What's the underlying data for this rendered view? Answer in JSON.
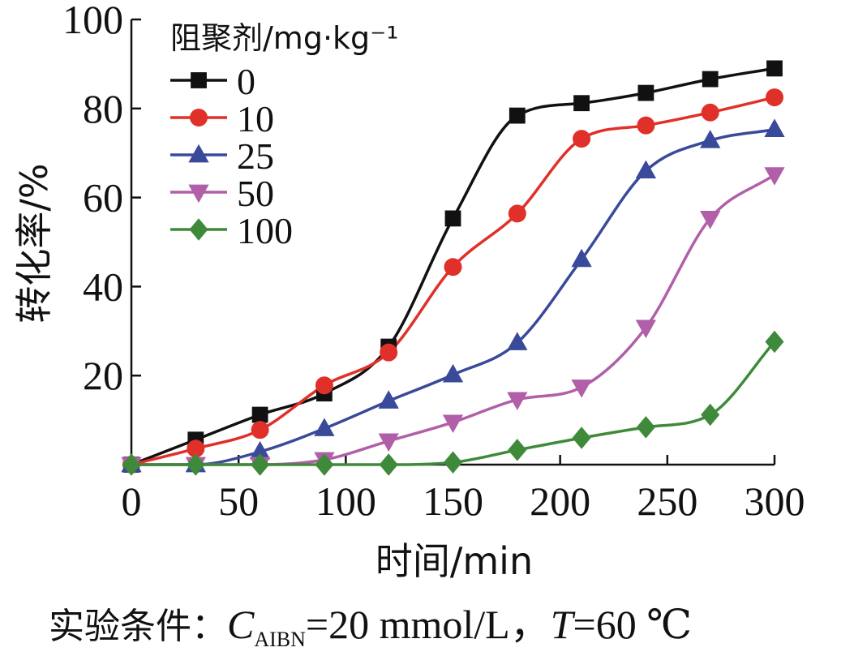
{
  "chart_data": {
    "type": "line",
    "xlabel": "时间/min",
    "ylabel": "转化率/%",
    "xlim": [
      0,
      300
    ],
    "ylim": [
      0,
      100
    ],
    "xticks": [
      0,
      50,
      100,
      150,
      200,
      250,
      300
    ],
    "yticks": [
      20,
      40,
      60,
      80,
      100
    ],
    "legend_title": "阻聚剂/mg·kg⁻¹",
    "legend_position": "top-left",
    "grid": false,
    "x": [
      0,
      30,
      60,
      90,
      120,
      150,
      180,
      210,
      240,
      270,
      300
    ],
    "series": [
      {
        "name": "0",
        "color": "#111111",
        "marker": "square",
        "values": [
          0,
          5.6,
          11.2,
          16.0,
          26.5,
          55.3,
          78.4,
          81.2,
          83.5,
          86.6,
          89.0
        ]
      },
      {
        "name": "10",
        "color": "#e0302a",
        "marker": "circle",
        "values": [
          0,
          3.6,
          7.8,
          17.8,
          25.2,
          44.4,
          56.4,
          73.2,
          76.2,
          79.1,
          82.5
        ]
      },
      {
        "name": "25",
        "color": "#3a4a9a",
        "marker": "triangle-up",
        "values": [
          0,
          0,
          2.9,
          8.1,
          14.3,
          20.2,
          27.4,
          46.1,
          66.0,
          72.8,
          75.3
        ]
      },
      {
        "name": "50",
        "color": "#b05fa8",
        "marker": "triangle-down",
        "values": [
          0,
          0,
          0,
          1.1,
          5.3,
          9.5,
          14.6,
          17.4,
          30.8,
          55.3,
          65.1
        ]
      },
      {
        "name": "100",
        "color": "#3f8a3a",
        "marker": "diamond",
        "values": [
          0,
          0,
          0,
          0,
          0,
          0.5,
          3.3,
          6.0,
          8.4,
          11.2,
          27.6
        ]
      }
    ]
  },
  "caption": {
    "prefix": "实验条件：",
    "c_var": "C",
    "c_sub": "AIBN",
    "c_value": "=20 mmol/L，",
    "t_var": "T",
    "t_value": "=60 ℃"
  }
}
